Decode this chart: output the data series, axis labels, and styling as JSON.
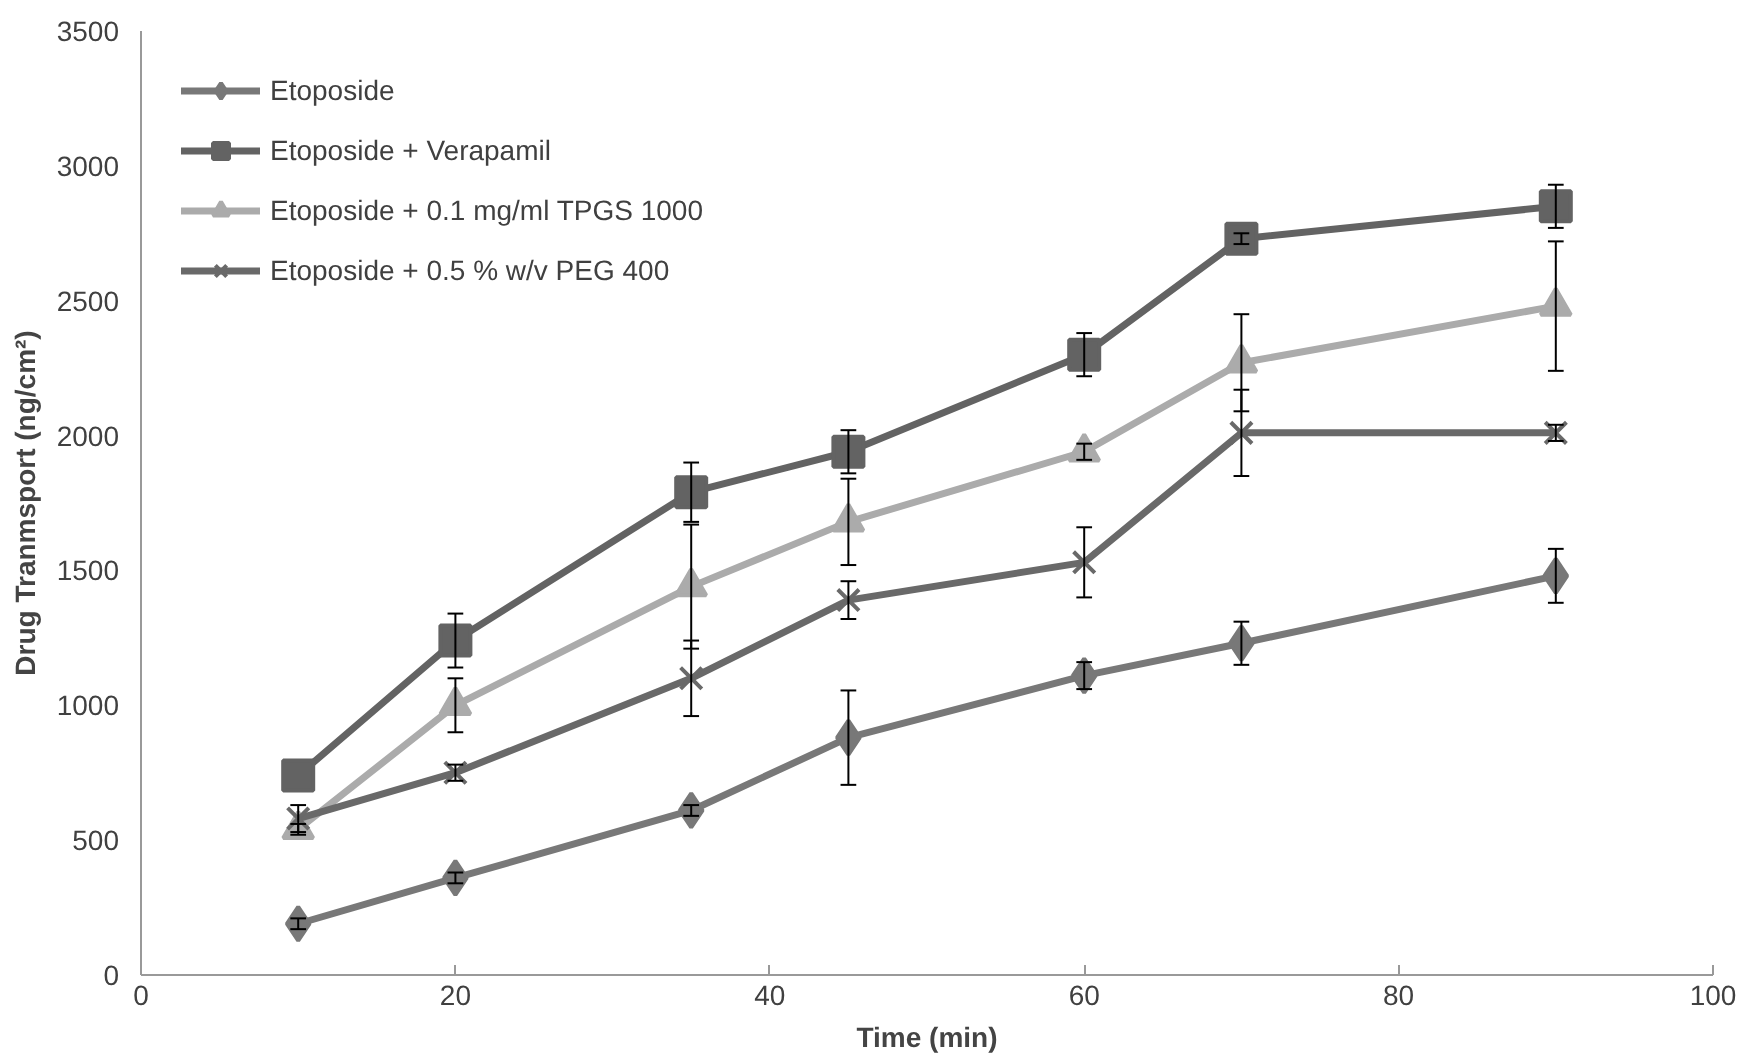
{
  "chart_data": {
    "type": "line",
    "xlabel": "Time (min)",
    "ylabel": "Drug Tranmsport (ng/cm²)",
    "x": [
      10,
      20,
      35,
      45,
      60,
      70,
      90
    ],
    "series": [
      {
        "name": "Etoposide",
        "color": "#787878",
        "marker": "diamond",
        "values": [
          190,
          360,
          610,
          880,
          1110,
          1230,
          1480
        ],
        "errors": [
          20,
          20,
          20,
          175,
          50,
          80,
          100
        ]
      },
      {
        "name": "Etoposide + Verapamil",
        "color": "#636363",
        "marker": "square",
        "values": [
          740,
          1240,
          1790,
          1940,
          2300,
          2730,
          2850
        ],
        "errors": [
          null,
          100,
          110,
          80,
          80,
          20,
          80
        ]
      },
      {
        "name": "Etoposide + 0.1 mg/ml TPGS 1000",
        "color": "#ababab",
        "marker": "triangle",
        "values": [
          540,
          1000,
          1440,
          1680,
          1940,
          2270,
          2480
        ],
        "errors": [
          20,
          100,
          230,
          160,
          30,
          180,
          240
        ]
      },
      {
        "name": "Etoposide + 0.5 % w/v PEG 400",
        "color": "#696969",
        "marker": "cross",
        "values": [
          580,
          750,
          1100,
          1390,
          1530,
          2010,
          2010
        ],
        "errors": [
          50,
          30,
          140,
          70,
          130,
          160,
          30
        ]
      }
    ],
    "xlim": [
      0,
      100
    ],
    "xticks": [
      0,
      20,
      40,
      60,
      80,
      100
    ],
    "ylim": [
      0,
      3500
    ],
    "yticks": [
      0,
      500,
      1000,
      1500,
      2000,
      2500,
      3000,
      3500
    ],
    "grid": false,
    "legend": "top left"
  }
}
